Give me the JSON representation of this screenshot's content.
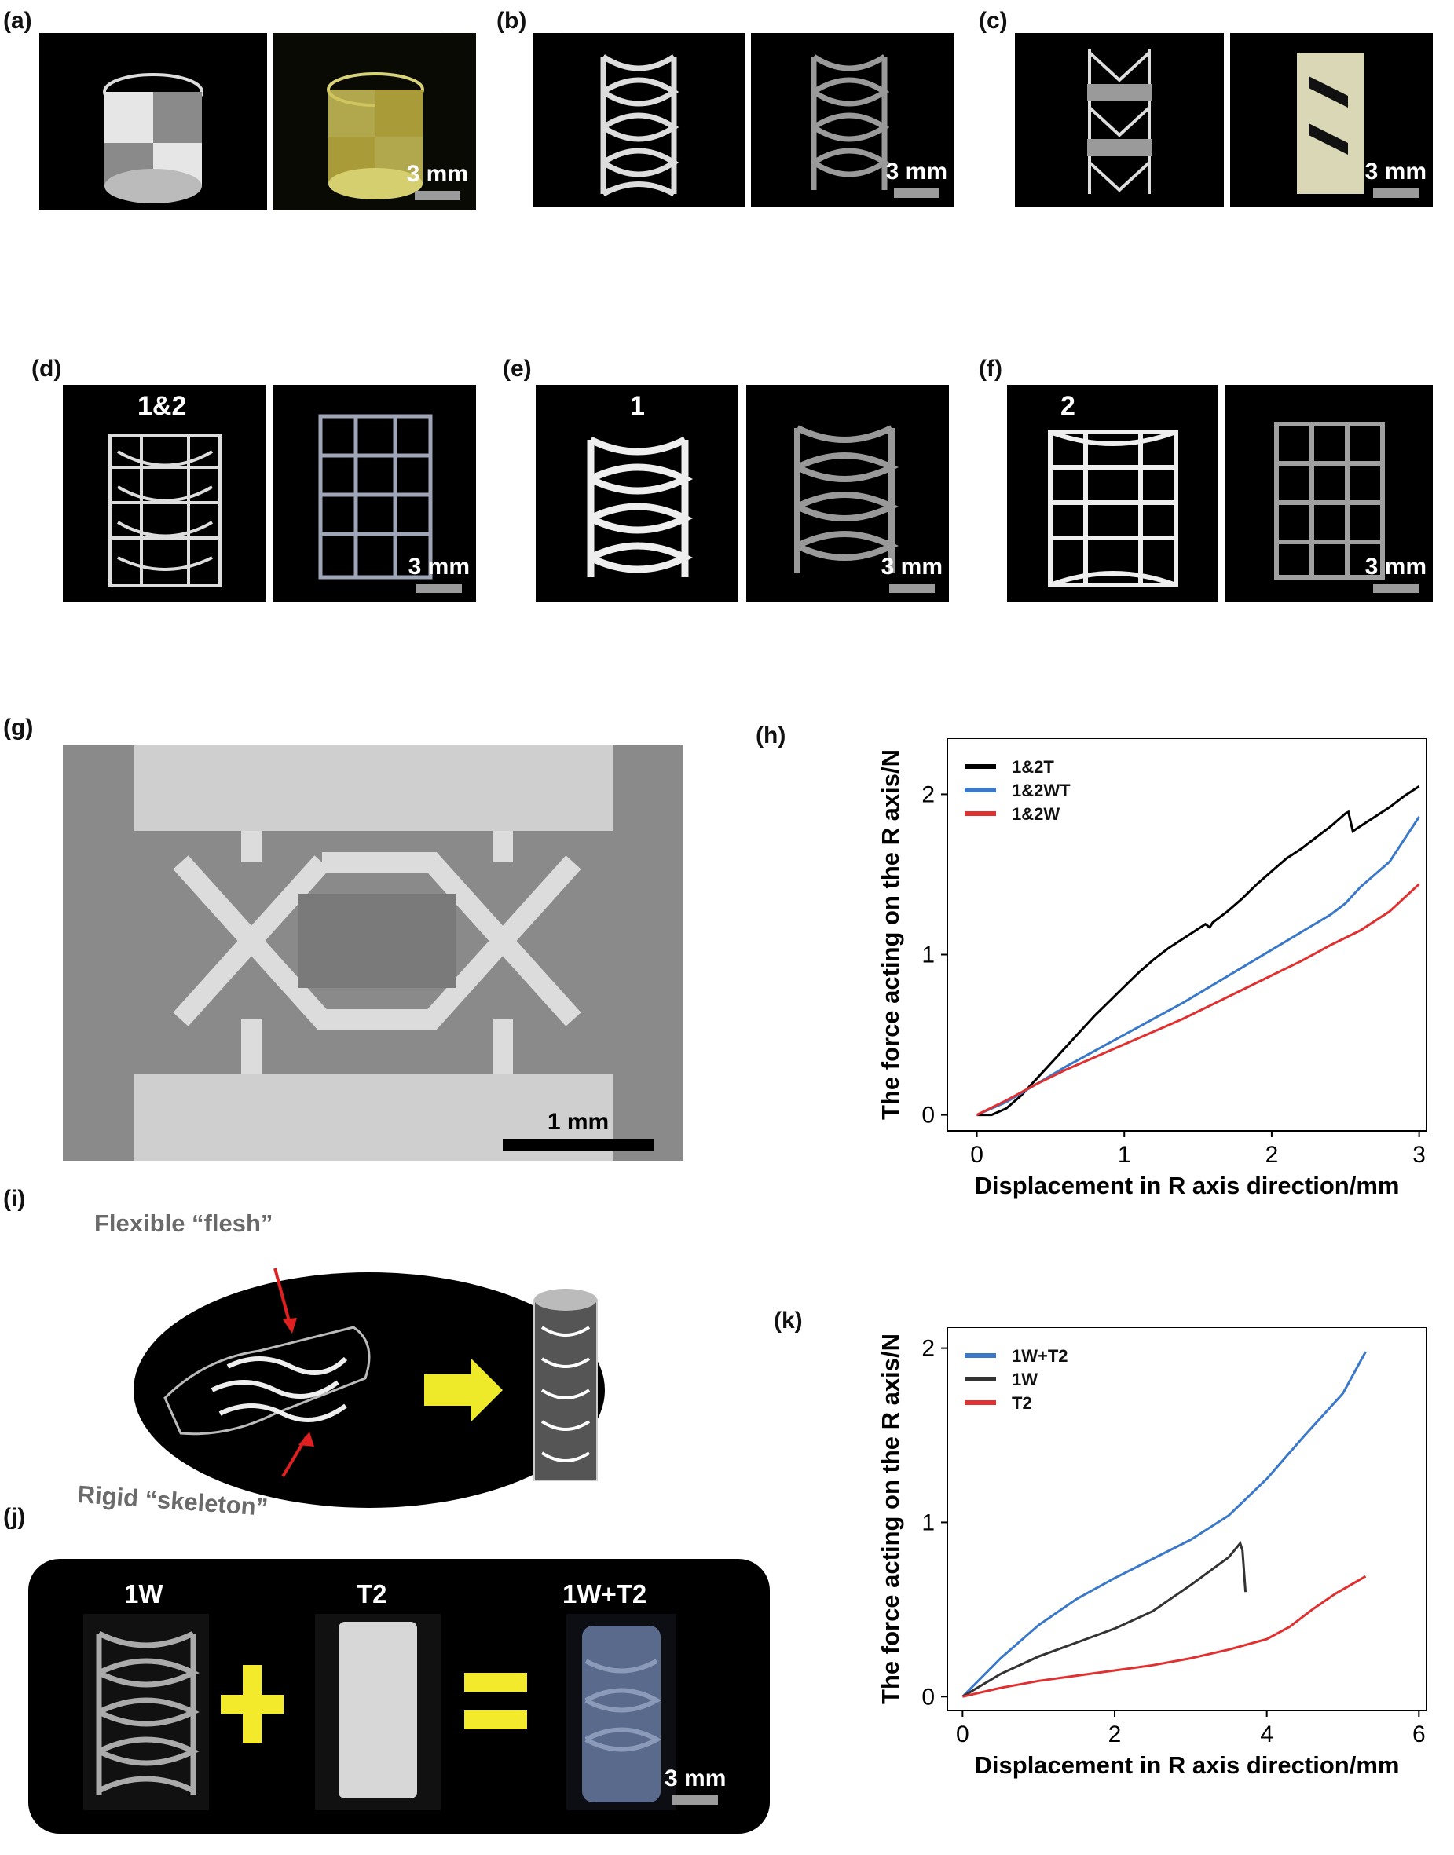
{
  "panels": {
    "a": {
      "label": "(a)",
      "scale": "3 mm"
    },
    "b": {
      "label": "(b)",
      "scale": "3 mm"
    },
    "c": {
      "label": "(c)",
      "scale": "3 mm"
    },
    "d": {
      "label": "(d)",
      "tag": "1&2",
      "scale": "3 mm"
    },
    "e": {
      "label": "(e)",
      "tag": "1",
      "scale": "3 mm"
    },
    "f": {
      "label": "(f)",
      "tag": "2",
      "scale": "3 mm"
    },
    "g": {
      "label": "(g)",
      "scale": "1 mm"
    },
    "h": {
      "label": "(h)"
    },
    "i": {
      "label": "(i)",
      "flesh": "Flexible “flesh”",
      "skeleton": "Rigid “skeleton”"
    },
    "j": {
      "label": "(j)",
      "item1": "1W",
      "item2": "T2",
      "item3": "1W+T2",
      "scale": "3 mm"
    },
    "k": {
      "label": "(k)"
    }
  },
  "chart_data": [
    {
      "type": "line",
      "panel": "h",
      "xlabel": "Displacement in R axis direction/mm",
      "ylabel": "The force acting on the R axis/N",
      "xlim": [
        -0.2,
        3.05
      ],
      "ylim": [
        -0.1,
        2.35
      ],
      "xticks": [
        0,
        1,
        2,
        3
      ],
      "yticks": [
        0,
        1,
        2
      ],
      "legend": "top-left",
      "series": [
        {
          "name": "1&2T",
          "color": "#000000",
          "points": [
            [
              0,
              0
            ],
            [
              0.1,
              0.0
            ],
            [
              0.2,
              0.04
            ],
            [
              0.3,
              0.12
            ],
            [
              0.4,
              0.22
            ],
            [
              0.5,
              0.32
            ],
            [
              0.6,
              0.42
            ],
            [
              0.7,
              0.52
            ],
            [
              0.8,
              0.62
            ],
            [
              0.9,
              0.71
            ],
            [
              1.0,
              0.8
            ],
            [
              1.1,
              0.89
            ],
            [
              1.2,
              0.97
            ],
            [
              1.3,
              1.04
            ],
            [
              1.4,
              1.1
            ],
            [
              1.5,
              1.16
            ],
            [
              1.55,
              1.19
            ],
            [
              1.58,
              1.17
            ],
            [
              1.6,
              1.2
            ],
            [
              1.7,
              1.27
            ],
            [
              1.8,
              1.35
            ],
            [
              1.9,
              1.44
            ],
            [
              2.0,
              1.52
            ],
            [
              2.1,
              1.6
            ],
            [
              2.2,
              1.66
            ],
            [
              2.3,
              1.73
            ],
            [
              2.4,
              1.8
            ],
            [
              2.5,
              1.88
            ],
            [
              2.52,
              1.89
            ],
            [
              2.55,
              1.77
            ],
            [
              2.6,
              1.8
            ],
            [
              2.7,
              1.86
            ],
            [
              2.8,
              1.92
            ],
            [
              2.9,
              1.99
            ],
            [
              3.0,
              2.05
            ]
          ]
        },
        {
          "name": "1&2WT",
          "color": "#3a78c9",
          "points": [
            [
              0,
              0
            ],
            [
              0.2,
              0.08
            ],
            [
              0.4,
              0.19
            ],
            [
              0.6,
              0.3
            ],
            [
              0.8,
              0.4
            ],
            [
              1.0,
              0.5
            ],
            [
              1.2,
              0.6
            ],
            [
              1.4,
              0.7
            ],
            [
              1.6,
              0.81
            ],
            [
              1.8,
              0.92
            ],
            [
              2.0,
              1.03
            ],
            [
              2.2,
              1.14
            ],
            [
              2.4,
              1.25
            ],
            [
              2.5,
              1.32
            ],
            [
              2.6,
              1.42
            ],
            [
              2.8,
              1.58
            ],
            [
              3.0,
              1.86
            ]
          ]
        },
        {
          "name": "1&2W",
          "color": "#e03030",
          "points": [
            [
              0,
              0
            ],
            [
              0.2,
              0.09
            ],
            [
              0.4,
              0.19
            ],
            [
              0.6,
              0.28
            ],
            [
              0.8,
              0.36
            ],
            [
              1.0,
              0.44
            ],
            [
              1.2,
              0.52
            ],
            [
              1.4,
              0.6
            ],
            [
              1.6,
              0.69
            ],
            [
              1.8,
              0.78
            ],
            [
              2.0,
              0.87
            ],
            [
              2.2,
              0.96
            ],
            [
              2.4,
              1.06
            ],
            [
              2.6,
              1.15
            ],
            [
              2.8,
              1.27
            ],
            [
              3.0,
              1.44
            ]
          ]
        }
      ]
    },
    {
      "type": "line",
      "panel": "k",
      "xlabel": "Displacement in R axis direction/mm",
      "ylabel": "The force acting on the R axis/N",
      "xlim": [
        -0.2,
        6.1
      ],
      "ylim": [
        -0.08,
        2.12
      ],
      "xticks": [
        0,
        2,
        4,
        6
      ],
      "yticks": [
        0,
        1,
        2
      ],
      "legend": "top-left",
      "series": [
        {
          "name": "1W+T2",
          "color": "#3a78c9",
          "points": [
            [
              0,
              0
            ],
            [
              0.5,
              0.22
            ],
            [
              1.0,
              0.41
            ],
            [
              1.5,
              0.56
            ],
            [
              2.0,
              0.68
            ],
            [
              2.5,
              0.79
            ],
            [
              3.0,
              0.9
            ],
            [
              3.5,
              1.04
            ],
            [
              4.0,
              1.25
            ],
            [
              4.5,
              1.5
            ],
            [
              5.0,
              1.74
            ],
            [
              5.3,
              1.98
            ]
          ]
        },
        {
          "name": "1W",
          "color": "#333333",
          "points": [
            [
              0,
              0
            ],
            [
              0.5,
              0.13
            ],
            [
              1.0,
              0.23
            ],
            [
              1.5,
              0.31
            ],
            [
              2.0,
              0.39
            ],
            [
              2.5,
              0.49
            ],
            [
              3.0,
              0.64
            ],
            [
              3.5,
              0.8
            ],
            [
              3.65,
              0.88
            ],
            [
              3.68,
              0.84
            ],
            [
              3.72,
              0.6
            ]
          ]
        },
        {
          "name": "T2",
          "color": "#e03030",
          "points": [
            [
              0,
              0
            ],
            [
              0.5,
              0.05
            ],
            [
              1.0,
              0.09
            ],
            [
              1.5,
              0.12
            ],
            [
              2.0,
              0.15
            ],
            [
              2.5,
              0.18
            ],
            [
              3.0,
              0.22
            ],
            [
              3.5,
              0.27
            ],
            [
              4.0,
              0.33
            ],
            [
              4.3,
              0.4
            ],
            [
              4.6,
              0.5
            ],
            [
              4.9,
              0.59
            ],
            [
              5.3,
              0.69
            ]
          ]
        }
      ]
    }
  ]
}
